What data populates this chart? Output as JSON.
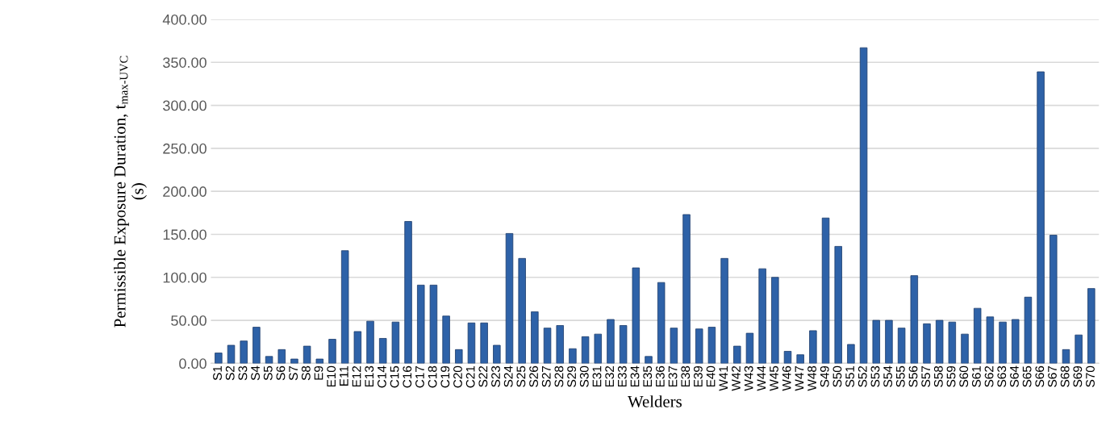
{
  "chart_data": {
    "type": "bar",
    "xlabel": "Welders",
    "ylabel": "Permissible Exposure Duration, t$_{max-UVC}$\n(s)",
    "categories": [
      "S1",
      "S2",
      "S3",
      "S4",
      "S5",
      "S6",
      "S7",
      "S8",
      "E9",
      "E10",
      "E11",
      "E12",
      "E13",
      "C14",
      "C15",
      "C16",
      "C17",
      "C18",
      "C19",
      "C20",
      "C21",
      "S22",
      "S23",
      "S24",
      "S25",
      "S26",
      "S27",
      "S28",
      "S29",
      "S30",
      "E31",
      "E32",
      "E33",
      "E34",
      "E35",
      "E36",
      "E37",
      "E38",
      "E39",
      "E40",
      "W41",
      "W42",
      "W43",
      "W44",
      "W45",
      "W46",
      "W47",
      "W48",
      "S49",
      "S50",
      "S51",
      "S52",
      "S53",
      "S54",
      "S55",
      "S56",
      "S57",
      "S58",
      "S59",
      "S60",
      "S61",
      "S62",
      "S63",
      "S64",
      "S65",
      "S66",
      "S67",
      "S68",
      "S69",
      "S70"
    ],
    "values": [
      12,
      21,
      26,
      42,
      8,
      16,
      5,
      20,
      5,
      28,
      131,
      37,
      49,
      29,
      48,
      165,
      91,
      91,
      55,
      16,
      47,
      47,
      21,
      151,
      122,
      60,
      41,
      44,
      17,
      31,
      34,
      51,
      44,
      111,
      8,
      94,
      41,
      173,
      40,
      42,
      122,
      20,
      35,
      110,
      100,
      14,
      10,
      38,
      169,
      136,
      22,
      367,
      50,
      50,
      41,
      102,
      46,
      50,
      48,
      34,
      64,
      54,
      48,
      51,
      77,
      339,
      149,
      16,
      33,
      87
    ],
    "color": "#2e62a8",
    "ylim": [
      0,
      400
    ],
    "yticks": [
      {
        "value": 0,
        "label": "0.00"
      },
      {
        "value": 50,
        "label": "50.00"
      },
      {
        "value": 100,
        "label": "100.00"
      },
      {
        "value": 150,
        "label": "150.00"
      },
      {
        "value": 200,
        "label": "200.00"
      },
      {
        "value": 250,
        "label": "250.00"
      },
      {
        "value": 300,
        "label": "300.00"
      },
      {
        "value": 350,
        "label": "350.00"
      },
      {
        "value": 400,
        "label": "400.00"
      }
    ],
    "grid": "y"
  }
}
